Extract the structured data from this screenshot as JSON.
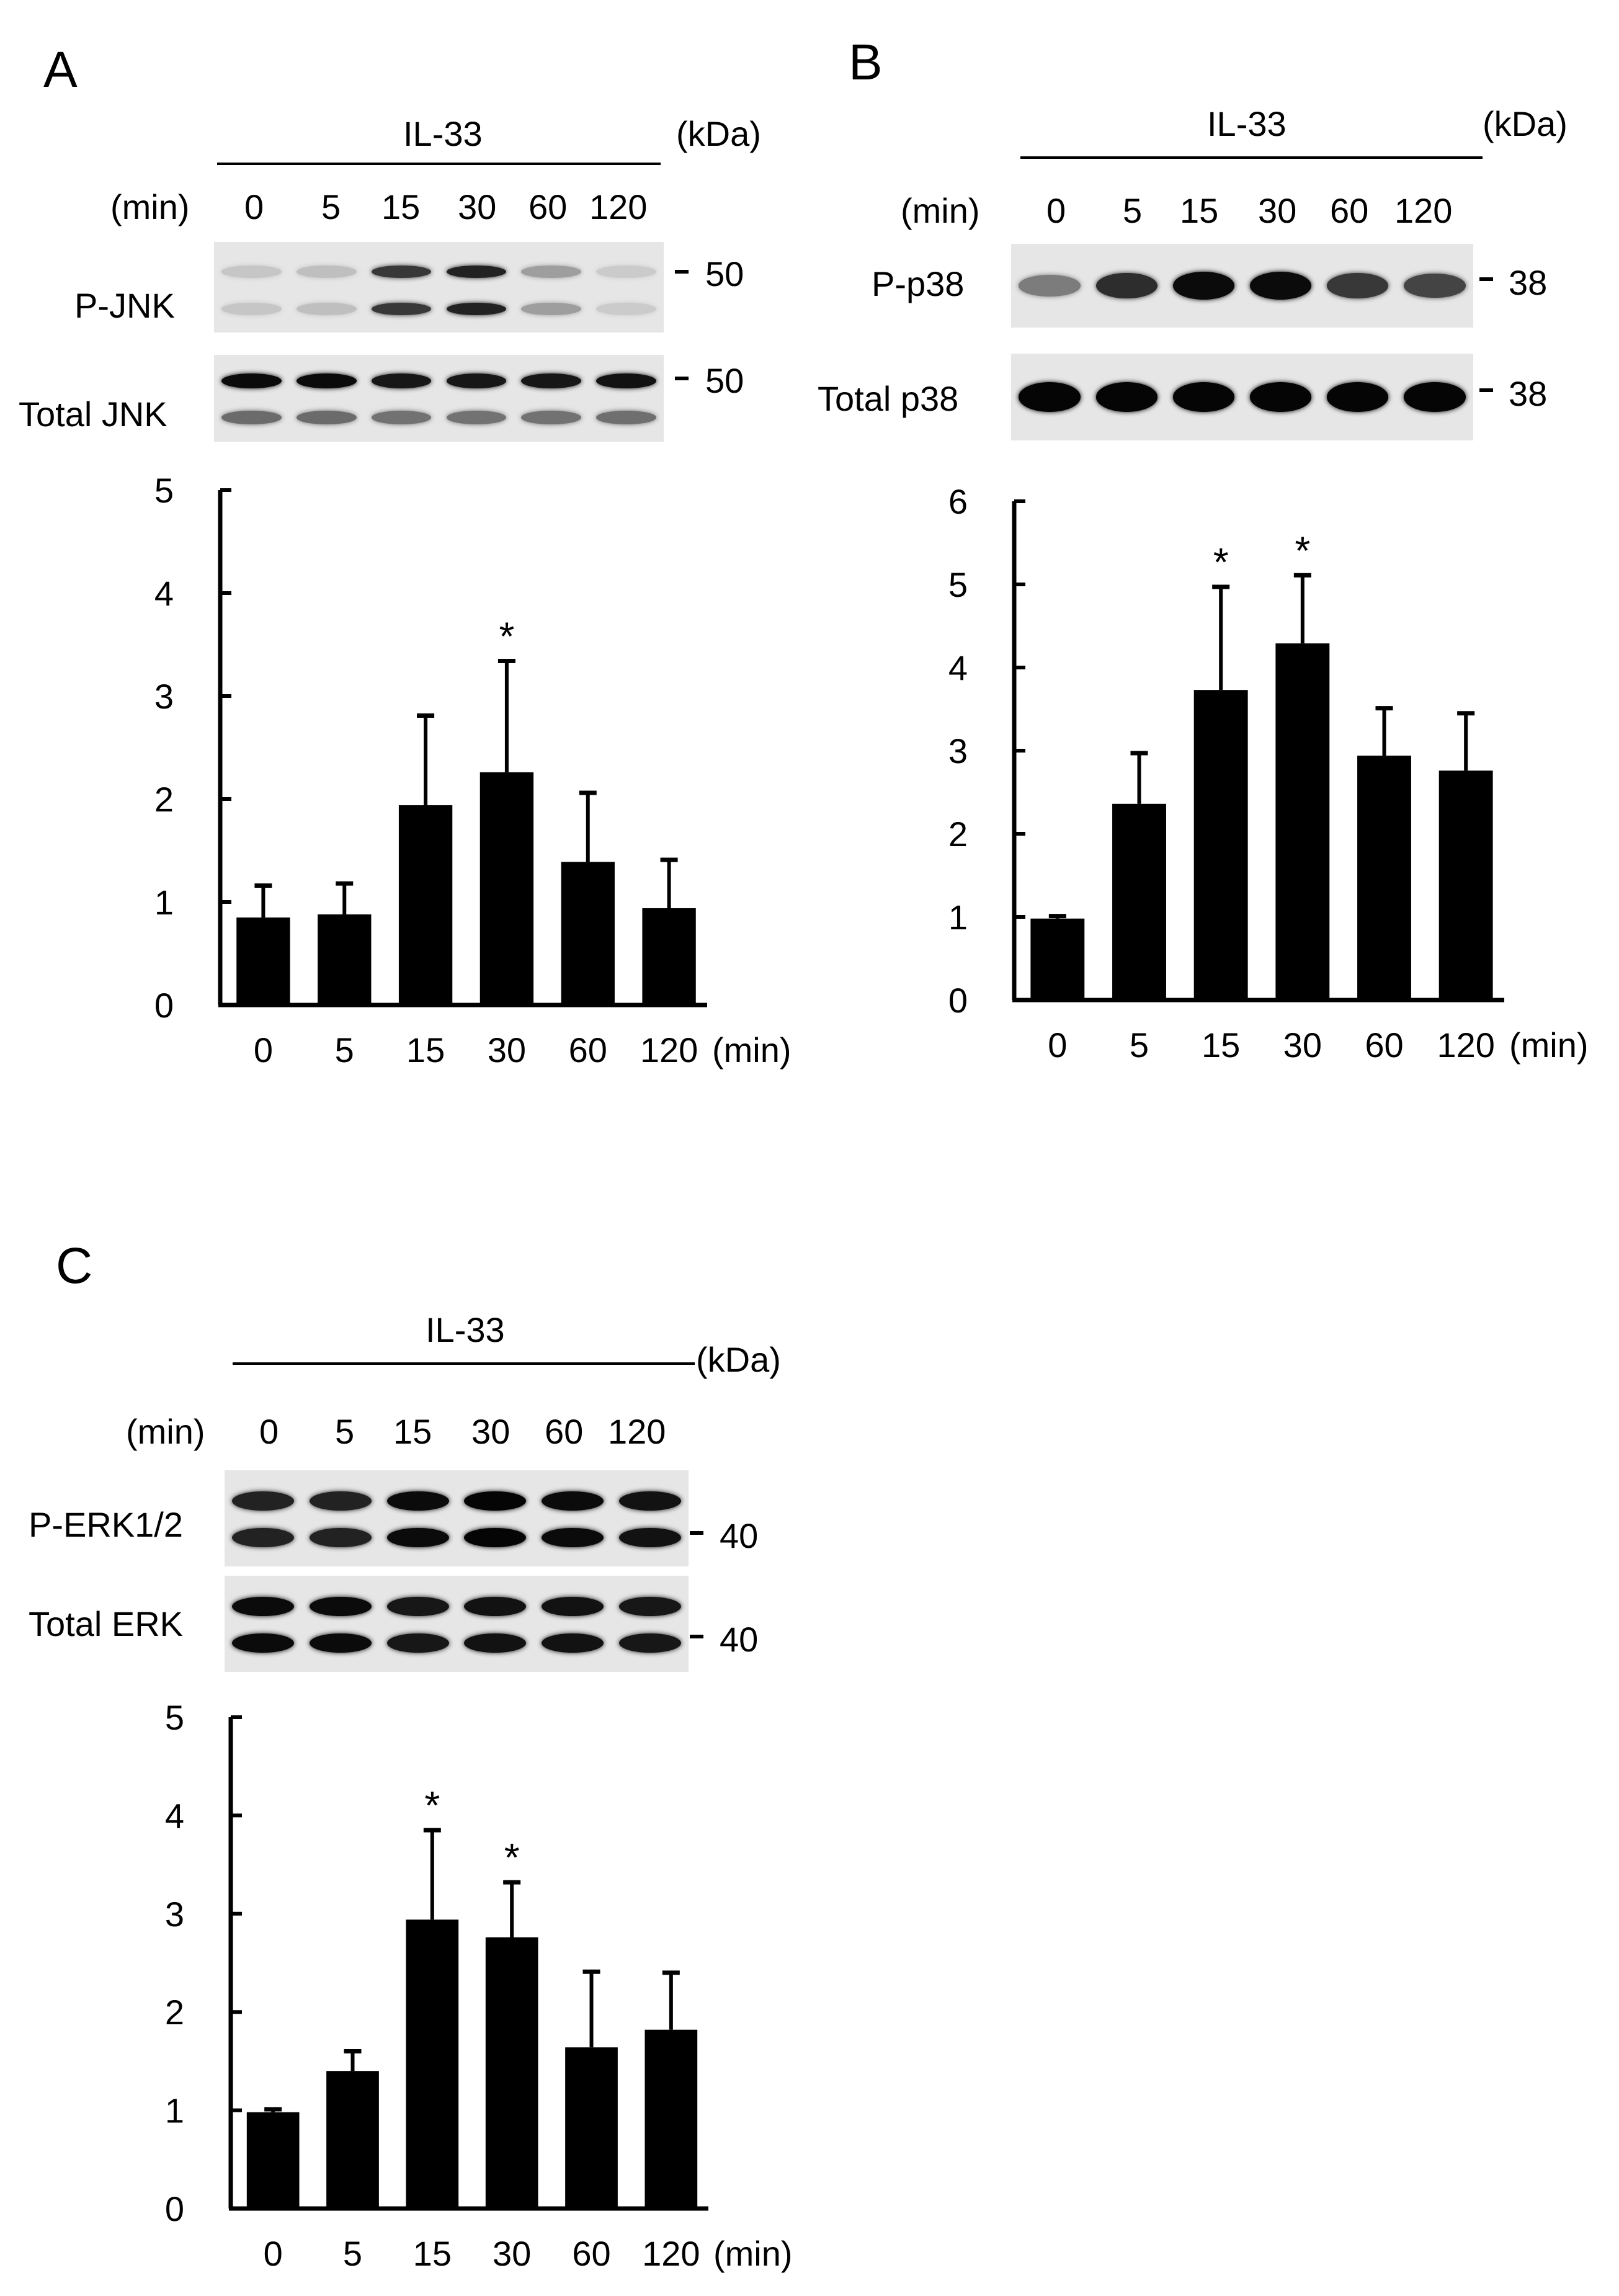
{
  "panels": {
    "A": {
      "letter": "A",
      "treatment": "IL-33",
      "kda_label": "(kDa)",
      "min_label": "(min)",
      "lanes": [
        "0",
        "5",
        "15",
        "30",
        "60",
        "120"
      ],
      "blots": [
        {
          "label": "P-JNK",
          "marker": "50",
          "intensity": [
            0.12,
            0.15,
            0.75,
            0.85,
            0.3,
            0.1
          ]
        },
        {
          "label": "Total JNK",
          "marker": "50",
          "intensity": [
            0.95,
            0.95,
            0.9,
            0.9,
            0.9,
            0.92
          ]
        }
      ]
    },
    "B": {
      "letter": "B",
      "treatment": "IL-33",
      "kda_label": "(kDa)",
      "min_label": "(min)",
      "lanes": [
        "0",
        "5",
        "15",
        "30",
        "60",
        "120"
      ],
      "blots": [
        {
          "label": "P-p38",
          "marker": "38",
          "intensity": [
            0.45,
            0.8,
            0.95,
            0.95,
            0.75,
            0.7
          ]
        },
        {
          "label": "Total p38",
          "marker": "38",
          "intensity": [
            0.98,
            0.98,
            0.98,
            0.98,
            0.98,
            0.98
          ]
        }
      ]
    },
    "C": {
      "letter": "C",
      "treatment": "IL-33",
      "kda_label": "(kDa)",
      "min_label": "(min)",
      "lanes": [
        "0",
        "5",
        "15",
        "30",
        "60",
        "120"
      ],
      "blots": [
        {
          "label": "P-ERK1/2",
          "marker": "40",
          "intensity": [
            0.85,
            0.85,
            0.95,
            0.98,
            0.95,
            0.92
          ]
        },
        {
          "label": "Total ERK",
          "marker": "40",
          "intensity": [
            0.95,
            0.95,
            0.9,
            0.92,
            0.92,
            0.9
          ]
        }
      ]
    }
  },
  "chart_data": [
    {
      "type": "bar",
      "panel": "A",
      "categories": [
        "0",
        "5",
        "15",
        "30",
        "60",
        "120"
      ],
      "values": [
        0.85,
        0.88,
        1.94,
        2.26,
        1.39,
        0.94
      ],
      "errors": [
        0.31,
        0.3,
        0.87,
        1.08,
        0.67,
        0.47
      ],
      "significant": [
        false,
        false,
        false,
        true,
        false,
        false
      ],
      "sig_mark": "*",
      "xlabel": "(min)",
      "ylim": [
        0,
        5
      ],
      "yticks": [
        0,
        1,
        2,
        3,
        4,
        5
      ]
    },
    {
      "type": "bar",
      "panel": "B",
      "categories": [
        "0",
        "5",
        "15",
        "30",
        "60",
        "120"
      ],
      "values": [
        0.98,
        2.36,
        3.73,
        4.29,
        2.94,
        2.76
      ],
      "errors": [
        0.03,
        0.61,
        1.24,
        0.82,
        0.57,
        0.69
      ],
      "significant": [
        false,
        false,
        true,
        true,
        false,
        false
      ],
      "sig_mark": "*",
      "xlabel": "(min)",
      "ylim": [
        0,
        6
      ],
      "yticks": [
        0,
        1,
        2,
        3,
        4,
        5,
        6
      ]
    },
    {
      "type": "bar",
      "panel": "C",
      "categories": [
        "0",
        "5",
        "15",
        "30",
        "60",
        "120"
      ],
      "values": [
        0.98,
        1.4,
        2.94,
        2.76,
        1.64,
        1.82
      ],
      "errors": [
        0.03,
        0.2,
        0.91,
        0.56,
        0.77,
        0.58
      ],
      "significant": [
        false,
        false,
        true,
        true,
        false,
        false
      ],
      "sig_mark": "*",
      "xlabel": "(min)",
      "ylim": [
        0,
        5
      ],
      "yticks": [
        0,
        1,
        2,
        3,
        4,
        5
      ]
    }
  ]
}
